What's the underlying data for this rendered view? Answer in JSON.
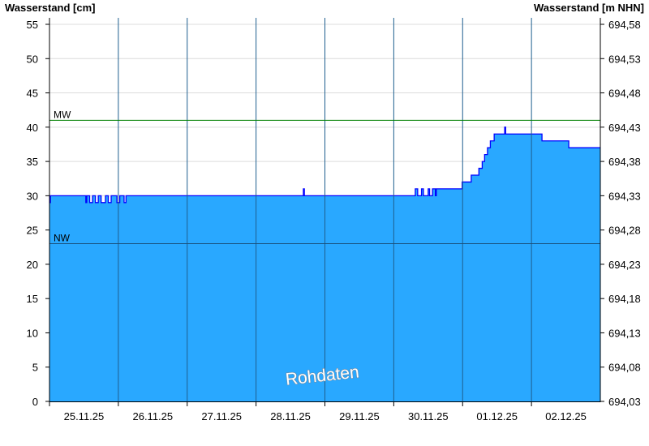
{
  "chart_data": {
    "type": "area",
    "ylabel_left": "Wasserstand [cm]",
    "ylabel_right": "Wasserstand [m NHN]",
    "ylim": [
      0,
      55
    ],
    "yticks_left": [
      "0",
      "5",
      "10",
      "15",
      "20",
      "25",
      "30",
      "35",
      "40",
      "45",
      "50",
      "55"
    ],
    "yticks_right": [
      "694,03",
      "694,08",
      "694,13",
      "694,18",
      "694,23",
      "694,28",
      "694,33",
      "694,38",
      "694,43",
      "694,48",
      "694,53",
      "694,58"
    ],
    "xlim": [
      "25.11.25 00:00",
      "03.12.25 00:00"
    ],
    "xticks": [
      "25.11.25",
      "26.11.25",
      "27.11.25",
      "28.11.25",
      "29.11.25",
      "30.11.25",
      "01.12.25",
      "02.12.25"
    ],
    "grid": true,
    "reference_lines": [
      {
        "label": "MW",
        "value": 41,
        "color": "#008000"
      },
      {
        "label": "NW",
        "value": 23,
        "color": "#1a4f7a"
      }
    ],
    "fill_color": "#29a8ff",
    "line_color": "#0000ff",
    "watermark": "Rohdaten",
    "series": [
      {
        "points": [
          [
            "25.11.25 00:00",
            29
          ],
          [
            "25.11.25 00:20",
            30
          ],
          [
            "25.11.25 12:40",
            29
          ],
          [
            "25.11.25 13:00",
            30
          ],
          [
            "25.11.25 14:00",
            29
          ],
          [
            "25.11.25 15:00",
            30
          ],
          [
            "25.11.25 16:00",
            29
          ],
          [
            "25.11.25 17:00",
            30
          ],
          [
            "25.11.25 18:00",
            29
          ],
          [
            "25.11.25 19:30",
            30
          ],
          [
            "25.11.25 20:30",
            29
          ],
          [
            "25.11.25 21:30",
            30
          ],
          [
            "25.11.25 23:30",
            29
          ],
          [
            "26.11.25 00:30",
            30
          ],
          [
            "26.11.25 02:00",
            29
          ],
          [
            "26.11.25 02:40",
            30
          ],
          [
            "28.11.25 16:30",
            31
          ],
          [
            "28.11.25 16:50",
            30
          ],
          [
            "30.11.25 07:30",
            31
          ],
          [
            "30.11.25 08:20",
            30
          ],
          [
            "30.11.25 09:40",
            31
          ],
          [
            "30.11.25 10:20",
            30
          ],
          [
            "30.11.25 12:00",
            31
          ],
          [
            "30.11.25 12:30",
            30
          ],
          [
            "30.11.25 13:30",
            31
          ],
          [
            "30.11.25 14:30",
            30
          ],
          [
            "30.11.25 14:50",
            31
          ],
          [
            "30.11.25 23:50",
            32
          ],
          [
            "01.12.25 03:00",
            33
          ],
          [
            "01.12.25 05:40",
            34
          ],
          [
            "01.12.25 06:50",
            35
          ],
          [
            "01.12.25 07:40",
            36
          ],
          [
            "01.12.25 08:40",
            37
          ],
          [
            "01.12.25 09:40",
            38
          ],
          [
            "01.12.25 11:00",
            39
          ],
          [
            "01.12.25 14:40",
            40
          ],
          [
            "01.12.25 15:00",
            39
          ],
          [
            "02.12.25 03:40",
            38
          ],
          [
            "02.12.25 13:00",
            37
          ],
          [
            "03.12.25 00:00",
            37
          ]
        ]
      }
    ]
  }
}
